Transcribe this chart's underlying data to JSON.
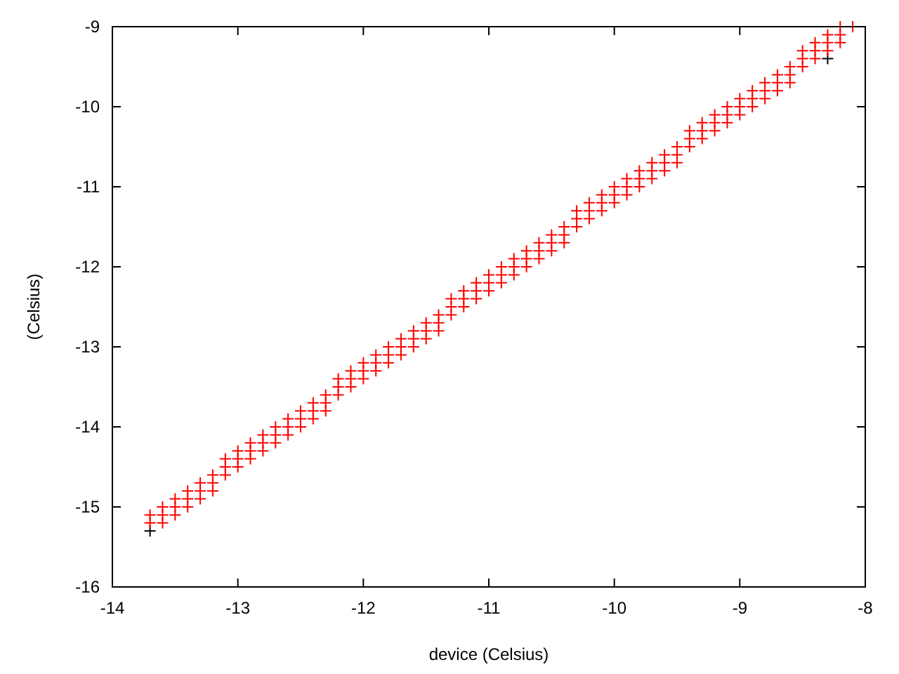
{
  "chart_data": {
    "type": "scatter",
    "xlabel": "device (Celsius)",
    "ylabel": "(Celsius)",
    "xlim": [
      -14,
      -8
    ],
    "ylim": [
      -16,
      -9
    ],
    "xticks": [
      -14,
      -13,
      -12,
      -11,
      -10,
      -9,
      -8
    ],
    "yticks": [
      -16,
      -15,
      -14,
      -13,
      -12,
      -11,
      -10,
      -9
    ],
    "grid": false,
    "marker": "cross",
    "series": [
      {
        "color": "#000000",
        "x": [
          -13.7,
          -8.3
        ],
        "values": [
          -15.3,
          -9.4
        ]
      },
      {
        "color": "#ff0000",
        "x": [
          -13.7,
          -13.7,
          -13.6,
          -13.6,
          -13.6,
          -13.5,
          -13.5,
          -13.5,
          -13.4,
          -13.4,
          -13.4,
          -13.3,
          -13.3,
          -13.3,
          -13.2,
          -13.2,
          -13.2,
          -13.1,
          -13.1,
          -13.1,
          -13.0,
          -13.0,
          -13.0,
          -12.9,
          -12.9,
          -12.9,
          -12.8,
          -12.8,
          -12.8,
          -12.7,
          -12.7,
          -12.7,
          -12.6,
          -12.6,
          -12.6,
          -12.5,
          -12.5,
          -12.5,
          -12.4,
          -12.4,
          -12.4,
          -12.3,
          -12.3,
          -12.3,
          -12.2,
          -12.2,
          -12.2,
          -12.1,
          -12.1,
          -12.1,
          -12.0,
          -12.0,
          -12.0,
          -11.9,
          -11.9,
          -11.9,
          -11.8,
          -11.8,
          -11.8,
          -11.7,
          -11.7,
          -11.7,
          -11.6,
          -11.6,
          -11.6,
          -11.5,
          -11.5,
          -11.5,
          -11.4,
          -11.4,
          -11.4,
          -11.3,
          -11.3,
          -11.3,
          -11.2,
          -11.2,
          -11.2,
          -11.1,
          -11.1,
          -11.1,
          -11.0,
          -11.0,
          -11.0,
          -10.9,
          -10.9,
          -10.9,
          -10.8,
          -10.8,
          -10.8,
          -10.7,
          -10.7,
          -10.7,
          -10.6,
          -10.6,
          -10.6,
          -10.5,
          -10.5,
          -10.5,
          -10.4,
          -10.4,
          -10.4,
          -10.3,
          -10.3,
          -10.3,
          -10.2,
          -10.2,
          -10.2,
          -10.1,
          -10.1,
          -10.1,
          -10.0,
          -10.0,
          -10.0,
          -9.9,
          -9.9,
          -9.9,
          -9.8,
          -9.8,
          -9.8,
          -9.7,
          -9.7,
          -9.7,
          -9.6,
          -9.6,
          -9.6,
          -9.5,
          -9.5,
          -9.5,
          -9.4,
          -9.4,
          -9.4,
          -9.3,
          -9.3,
          -9.3,
          -9.2,
          -9.2,
          -9.2,
          -9.1,
          -9.1,
          -9.1,
          -9.0,
          -9.0,
          -9.0,
          -8.9,
          -8.9,
          -8.9,
          -8.8,
          -8.8,
          -8.8,
          -8.7,
          -8.7,
          -8.7,
          -8.6,
          -8.6,
          -8.6,
          -8.5,
          -8.5,
          -8.5,
          -8.4,
          -8.4,
          -8.4,
          -8.3,
          -8.3,
          -8.3,
          -8.2,
          -8.2,
          -8.2,
          -8.1
        ],
        "values": [
          -15.2,
          -15.1,
          -15.2,
          -15.1,
          -15.0,
          -15.1,
          -15.0,
          -14.9,
          -15.0,
          -14.9,
          -14.8,
          -14.9,
          -14.8,
          -14.7,
          -14.8,
          -14.7,
          -14.6,
          -14.6,
          -14.5,
          -14.4,
          -14.5,
          -14.4,
          -14.3,
          -14.4,
          -14.3,
          -14.2,
          -14.3,
          -14.2,
          -14.1,
          -14.2,
          -14.1,
          -14.0,
          -14.1,
          -14.0,
          -13.9,
          -14.0,
          -13.9,
          -13.8,
          -13.9,
          -13.8,
          -13.7,
          -13.8,
          -13.7,
          -13.6,
          -13.6,
          -13.5,
          -13.4,
          -13.5,
          -13.4,
          -13.3,
          -13.4,
          -13.3,
          -13.2,
          -13.3,
          -13.2,
          -13.1,
          -13.2,
          -13.1,
          -13.0,
          -13.1,
          -13.0,
          -12.9,
          -13.0,
          -12.9,
          -12.8,
          -12.9,
          -12.8,
          -12.7,
          -12.8,
          -12.7,
          -12.6,
          -12.6,
          -12.5,
          -12.4,
          -12.5,
          -12.4,
          -12.3,
          -12.4,
          -12.3,
          -12.2,
          -12.3,
          -12.2,
          -12.1,
          -12.2,
          -12.1,
          -12.0,
          -12.1,
          -12.0,
          -11.9,
          -12.0,
          -11.9,
          -11.8,
          -11.9,
          -11.8,
          -11.7,
          -11.8,
          -11.7,
          -11.6,
          -11.7,
          -11.6,
          -11.5,
          -11.5,
          -11.4,
          -11.3,
          -11.4,
          -11.3,
          -11.2,
          -11.3,
          -11.2,
          -11.1,
          -11.2,
          -11.1,
          -11.0,
          -11.1,
          -11.0,
          -10.9,
          -11.0,
          -10.9,
          -10.8,
          -10.9,
          -10.8,
          -10.7,
          -10.8,
          -10.7,
          -10.6,
          -10.7,
          -10.6,
          -10.5,
          -10.5,
          -10.4,
          -10.3,
          -10.4,
          -10.3,
          -10.2,
          -10.3,
          -10.2,
          -10.1,
          -10.2,
          -10.1,
          -10.0,
          -10.1,
          -10.0,
          -9.9,
          -10.0,
          -9.9,
          -9.8,
          -9.9,
          -9.8,
          -9.7,
          -9.8,
          -9.7,
          -9.6,
          -9.7,
          -9.6,
          -9.5,
          -9.5,
          -9.4,
          -9.3,
          -9.4,
          -9.3,
          -9.2,
          -9.3,
          -9.2,
          -9.1,
          -9.2,
          -9.1,
          -9.0,
          -9.0
        ]
      }
    ]
  }
}
